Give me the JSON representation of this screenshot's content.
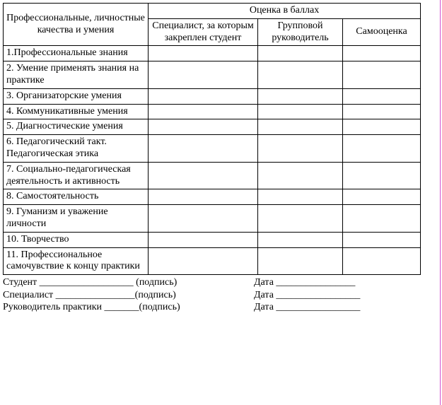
{
  "table": {
    "header": {
      "qualities": "Профессиональные, личностные качества и умения",
      "scores": "Оценка в баллах",
      "specialist": "Специалист, за которым закреплен студент",
      "group_leader": "Групповой руководитель",
      "self": "Самооценка"
    },
    "rows": [
      {
        "label": "1.Профессиональные знания"
      },
      {
        "label": "2. Умение применять знания на практике"
      },
      {
        "label": "3. Организаторские умения"
      },
      {
        "label": "4. Коммуникативные умения"
      },
      {
        "label": "5. Диагностические умения"
      },
      {
        "label": "6. Педагогический такт. Педагогическая этика"
      },
      {
        "label": "7. Социально-педагогическая деятельность и активность"
      },
      {
        "label": "8. Самостоятельность"
      },
      {
        "label": "9. Гуманизм и уважение личности"
      },
      {
        "label": "10. Творчество"
      },
      {
        "label": "11. Профессиональное самочувствие к концу практики"
      }
    ]
  },
  "signatures": {
    "student": "Студент ___________________ (подпись)",
    "student_date": "Дата ________________",
    "specialist": "Специалист ________________(подпись)",
    "specialist_date": "Дата _________________",
    "supervisor": "Руководитель практики _______(подпись)",
    "supervisor_date": "Дата _________________"
  }
}
